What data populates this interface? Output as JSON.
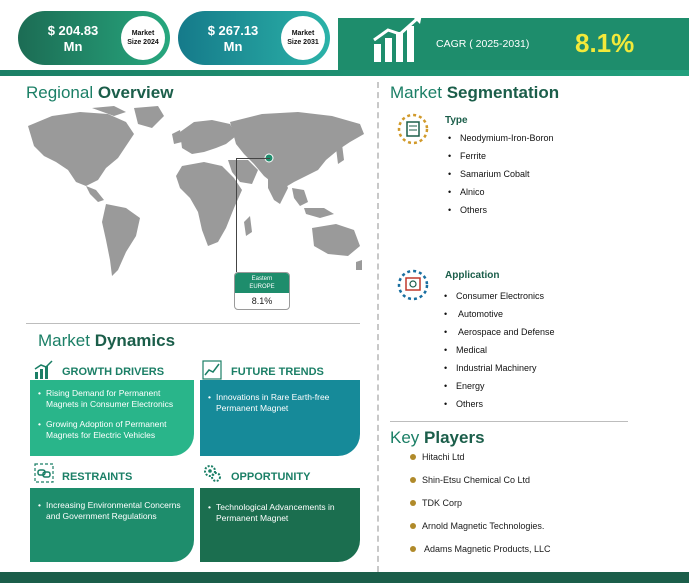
{
  "header": {
    "market_2024": {
      "value": "$ 204.83",
      "unit": "Mn",
      "badge_line1": "Market",
      "badge_line2": "Size 2024"
    },
    "market_2031": {
      "value": "$ 267.13",
      "unit": "Mn",
      "badge_line1": "Market",
      "badge_line2": "Size 2031"
    },
    "cagr_label": "CAGR ( 2025-2031)",
    "cagr_value": "8.1%",
    "colors": {
      "accent": "#1e8d6c",
      "highlight": "#f2e93a"
    }
  },
  "regional": {
    "title_light": "Regional",
    "title_bold": "Overview",
    "region_name_1": "Eastern",
    "region_name_2": "EUROPE",
    "region_value": "8.1%"
  },
  "dynamics": {
    "title_light": "Market",
    "title_bold": "Dynamics",
    "growth_drivers": {
      "label": "GROWTH DRIVERS",
      "icon": "bar-growth-icon",
      "items": [
        "Rising Demand for Permanent Magnets in Consumer Electronics",
        "Growing Adoption of Permanent Magnets for Electric Vehicles"
      ]
    },
    "future_trends": {
      "label": "FUTURE TRENDS",
      "icon": "trend-chart-icon",
      "items": [
        "Innovations in Rare Earth-free Permanent Magnet"
      ]
    },
    "restraints": {
      "label": "RESTRAINTS",
      "icon": "link-icon",
      "items": [
        "Increasing Environmental Concerns and Government Regulations"
      ]
    },
    "opportunity": {
      "label": "OPPORTUNITY",
      "icon": "gears-icon",
      "items": [
        "Technological Advancements in Permanent Magnet"
      ]
    }
  },
  "segmentation": {
    "title_light": "Market",
    "title_bold": "Segmentation",
    "type": {
      "label": "Type",
      "items": [
        "Neodymium-Iron-Boron",
        "Ferrite",
        "Samarium Cobalt",
        "Alnico",
        "Others"
      ]
    },
    "application": {
      "label": "Application",
      "items": [
        "Consumer Electronics",
        "Automotive",
        "Aerospace and Defense",
        "Medical",
        "Industrial Machinery",
        "Energy",
        "Others"
      ]
    }
  },
  "key_players": {
    "title_light": "Key",
    "title_bold": "Players",
    "items": [
      "Hitachi Ltd",
      "Shin-Etsu Chemical Co Ltd",
      "TDK Corp",
      "Arnold Magnetic Technologies.",
      "Adams Magnetic Products, LLC"
    ]
  }
}
